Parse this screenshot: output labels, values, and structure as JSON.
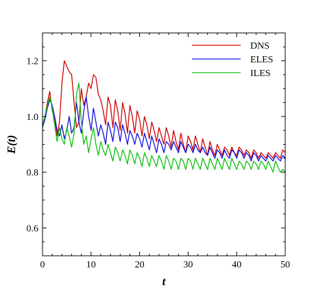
{
  "chart_data": {
    "type": "line",
    "xlabel": "t",
    "ylabel": "E(t)",
    "xlim": [
      0,
      50
    ],
    "ylim": [
      0.5,
      1.3
    ],
    "xticks": [
      0,
      10,
      20,
      30,
      40,
      50
    ],
    "yticks": [
      0.6,
      0.8,
      1.0,
      1.2
    ],
    "xtick_labels": [
      "0",
      "10",
      "20",
      "30",
      "40",
      "50"
    ],
    "ytick_labels": [
      "0.6",
      "0.8",
      "1.0",
      "1.2"
    ],
    "grid": false,
    "legend_position": "top-right",
    "series": [
      {
        "name": "DNS",
        "color": "#d00000",
        "x": [
          0,
          0.5,
          1,
          1.5,
          2,
          2.5,
          3,
          3.5,
          4,
          4.5,
          5,
          5.5,
          6,
          6.5,
          7,
          7.5,
          8,
          8.5,
          9,
          9.5,
          10,
          10.5,
          11,
          11.5,
          12,
          12.5,
          13,
          13.5,
          14,
          14.5,
          15,
          15.5,
          16,
          16.5,
          17,
          17.5,
          18,
          18.5,
          19,
          19.5,
          20,
          20.5,
          21,
          21.5,
          22,
          22.5,
          23,
          23.5,
          24,
          24.5,
          25,
          25.5,
          26,
          26.5,
          27,
          27.5,
          28,
          28.5,
          29,
          29.5,
          30,
          30.5,
          31,
          31.5,
          32,
          32.5,
          33,
          33.5,
          34,
          34.5,
          35,
          35.5,
          36,
          36.5,
          37,
          37.5,
          38,
          38.5,
          39,
          39.5,
          40,
          40.5,
          41,
          41.5,
          42,
          42.5,
          43,
          43.5,
          44,
          44.5,
          45,
          45.5,
          46,
          46.5,
          47,
          47.5,
          48,
          48.5,
          49,
          49.5,
          50
        ],
        "values": [
          0.97,
          1.0,
          1.05,
          1.09,
          1.02,
          0.99,
          0.93,
          0.98,
          1.12,
          1.2,
          1.18,
          1.16,
          1.15,
          1.05,
          0.96,
          0.98,
          1.1,
          1.04,
          1.07,
          1.12,
          1.1,
          1.15,
          1.14,
          1.08,
          1.06,
          1.02,
          0.97,
          1.07,
          1.04,
          0.96,
          1.06,
          1.02,
          0.95,
          1.05,
          1.01,
          0.94,
          1.04,
          1.0,
          0.94,
          1.02,
          0.99,
          0.93,
          1.0,
          0.97,
          0.92,
          0.98,
          0.95,
          0.91,
          0.96,
          0.93,
          0.9,
          0.96,
          0.93,
          0.89,
          0.95,
          0.91,
          0.88,
          0.94,
          0.9,
          0.87,
          0.93,
          0.91,
          0.88,
          0.93,
          0.9,
          0.87,
          0.92,
          0.89,
          0.86,
          0.91,
          0.88,
          0.86,
          0.9,
          0.88,
          0.86,
          0.89,
          0.88,
          0.86,
          0.89,
          0.87,
          0.86,
          0.89,
          0.88,
          0.86,
          0.88,
          0.87,
          0.85,
          0.88,
          0.87,
          0.85,
          0.87,
          0.86,
          0.85,
          0.87,
          0.86,
          0.85,
          0.87,
          0.86,
          0.85,
          0.88,
          0.87
        ]
      },
      {
        "name": "ELES",
        "color": "#1010e0",
        "x": [
          0,
          0.5,
          1,
          1.5,
          2,
          2.5,
          3,
          3.5,
          4,
          4.5,
          5,
          5.5,
          6,
          6.5,
          7,
          7.5,
          8,
          8.5,
          9,
          9.5,
          10,
          10.5,
          11,
          11.5,
          12,
          12.5,
          13,
          13.5,
          14,
          14.5,
          15,
          15.5,
          16,
          16.5,
          17,
          17.5,
          18,
          18.5,
          19,
          19.5,
          20,
          20.5,
          21,
          21.5,
          22,
          22.5,
          23,
          23.5,
          24,
          24.5,
          25,
          25.5,
          26,
          26.5,
          27,
          27.5,
          28,
          28.5,
          29,
          29.5,
          30,
          30.5,
          31,
          31.5,
          32,
          32.5,
          33,
          33.5,
          34,
          34.5,
          35,
          35.5,
          36,
          36.5,
          37,
          37.5,
          38,
          38.5,
          39,
          39.5,
          40,
          40.5,
          41,
          41.5,
          42,
          42.5,
          43,
          43.5,
          44,
          44.5,
          45,
          45.5,
          46,
          46.5,
          47,
          47.5,
          48,
          48.5,
          49,
          49.5,
          50
        ],
        "values": [
          0.96,
          0.99,
          1.03,
          1.06,
          1.04,
          1.0,
          0.95,
          0.93,
          0.97,
          0.92,
          0.95,
          1.0,
          0.94,
          0.96,
          1.05,
          0.98,
          0.94,
          1.02,
          1.07,
          1.0,
          0.95,
          1.03,
          0.98,
          0.93,
          0.97,
          0.94,
          0.9,
          0.98,
          0.95,
          0.91,
          0.98,
          0.96,
          0.91,
          0.97,
          0.94,
          0.9,
          0.95,
          0.93,
          0.9,
          0.94,
          0.92,
          0.89,
          0.94,
          0.91,
          0.88,
          0.93,
          0.9,
          0.87,
          0.92,
          0.9,
          0.87,
          0.91,
          0.9,
          0.88,
          0.91,
          0.89,
          0.87,
          0.91,
          0.89,
          0.87,
          0.9,
          0.89,
          0.87,
          0.9,
          0.88,
          0.87,
          0.89,
          0.87,
          0.86,
          0.89,
          0.87,
          0.85,
          0.88,
          0.87,
          0.85,
          0.88,
          0.86,
          0.85,
          0.88,
          0.87,
          0.85,
          0.88,
          0.87,
          0.85,
          0.87,
          0.86,
          0.84,
          0.87,
          0.86,
          0.84,
          0.86,
          0.85,
          0.84,
          0.86,
          0.85,
          0.84,
          0.86,
          0.85,
          0.84,
          0.86,
          0.85
        ]
      },
      {
        "name": "ILES",
        "color": "#10c010",
        "x": [
          0,
          0.5,
          1,
          1.5,
          2,
          2.5,
          3,
          3.5,
          4,
          4.5,
          5,
          5.5,
          6,
          6.5,
          7,
          7.5,
          8,
          8.5,
          9,
          9.5,
          10,
          10.5,
          11,
          11.5,
          12,
          12.5,
          13,
          13.5,
          14,
          14.5,
          15,
          15.5,
          16,
          16.5,
          17,
          17.5,
          18,
          18.5,
          19,
          19.5,
          20,
          20.5,
          21,
          21.5,
          22,
          22.5,
          23,
          23.5,
          24,
          24.5,
          25,
          25.5,
          26,
          26.5,
          27,
          27.5,
          28,
          28.5,
          29,
          29.5,
          30,
          30.5,
          31,
          31.5,
          32,
          32.5,
          33,
          33.5,
          34,
          34.5,
          35,
          35.5,
          36,
          36.5,
          37,
          37.5,
          38,
          38.5,
          39,
          39.5,
          40,
          40.5,
          41,
          41.5,
          42,
          42.5,
          43,
          43.5,
          44,
          44.5,
          45,
          45.5,
          46,
          46.5,
          47,
          47.5,
          48,
          48.5,
          49,
          49.5,
          50
        ],
        "values": [
          0.97,
          1.0,
          1.04,
          1.07,
          1.03,
          0.97,
          0.91,
          0.96,
          0.92,
          0.9,
          0.96,
          0.93,
          0.89,
          0.94,
          1.08,
          1.12,
          0.98,
          0.9,
          0.93,
          0.87,
          0.92,
          0.96,
          0.9,
          0.86,
          0.91,
          0.88,
          0.86,
          0.9,
          0.87,
          0.84,
          0.89,
          0.87,
          0.84,
          0.88,
          0.86,
          0.83,
          0.88,
          0.86,
          0.83,
          0.87,
          0.85,
          0.82,
          0.87,
          0.85,
          0.82,
          0.86,
          0.84,
          0.82,
          0.86,
          0.84,
          0.81,
          0.86,
          0.84,
          0.81,
          0.85,
          0.84,
          0.81,
          0.85,
          0.84,
          0.81,
          0.85,
          0.84,
          0.81,
          0.85,
          0.83,
          0.81,
          0.85,
          0.83,
          0.81,
          0.85,
          0.83,
          0.81,
          0.85,
          0.83,
          0.81,
          0.85,
          0.83,
          0.81,
          0.85,
          0.83,
          0.81,
          0.84,
          0.83,
          0.81,
          0.84,
          0.83,
          0.81,
          0.84,
          0.83,
          0.81,
          0.84,
          0.83,
          0.81,
          0.84,
          0.82,
          0.8,
          0.84,
          0.82,
          0.8,
          0.81,
          0.8
        ]
      }
    ]
  }
}
